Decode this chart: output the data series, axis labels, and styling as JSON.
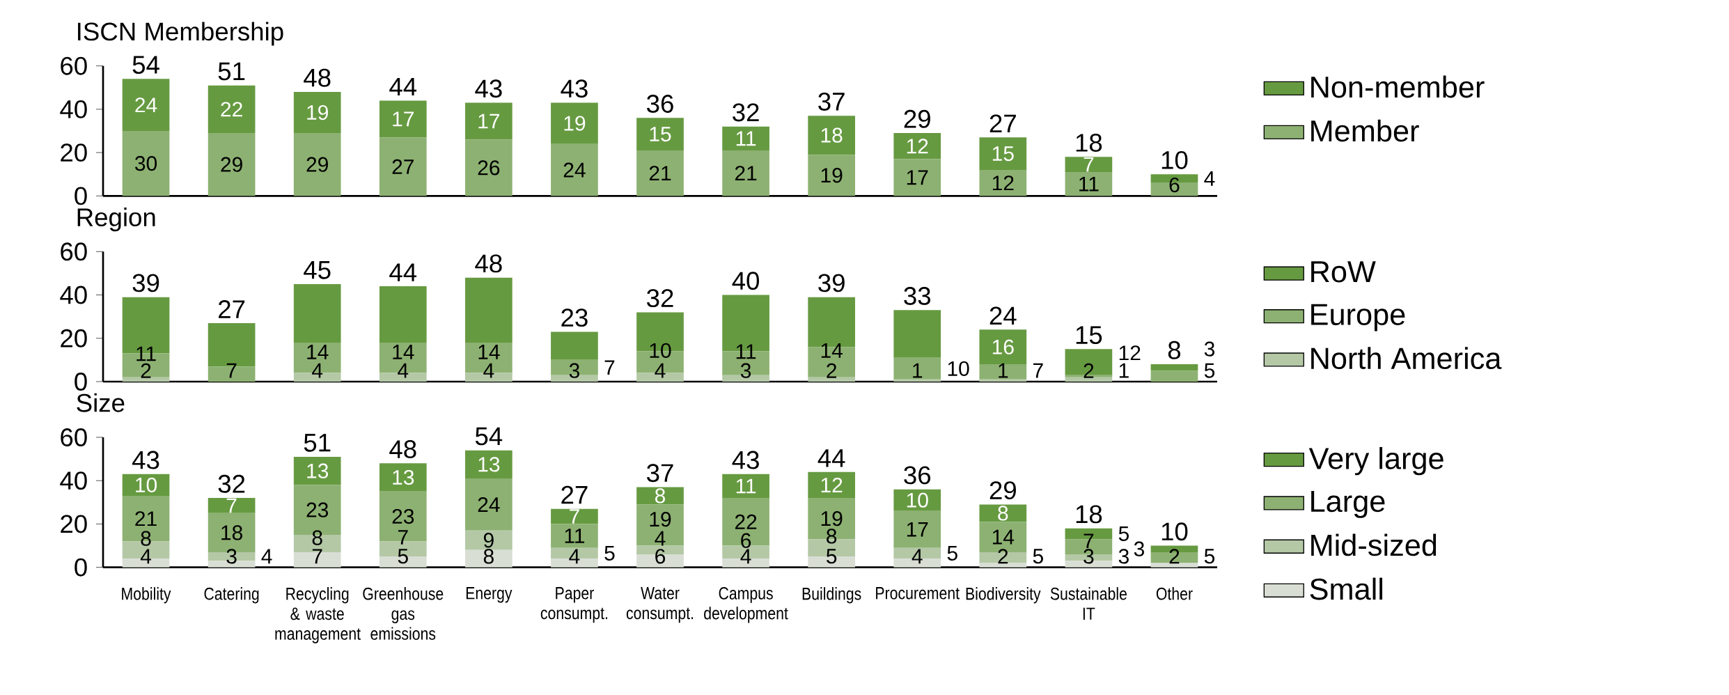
{
  "chart_data": [
    {
      "type": "bar",
      "stacked": true,
      "title": "ISCN Membership",
      "series": [
        {
          "name": "Member",
          "color": "#8db172",
          "values": [
            30,
            29,
            29,
            27,
            26,
            24,
            21,
            21,
            19,
            17,
            12,
            11,
            6
          ],
          "value_labels": [
            "30",
            "29",
            "29",
            "27",
            "26",
            "24",
            "21",
            "21",
            "19",
            "17",
            "12",
            "11",
            "6"
          ]
        },
        {
          "name": "Non-member",
          "color": "#669a41",
          "values": [
            24,
            22,
            19,
            17,
            17,
            19,
            15,
            11,
            18,
            12,
            15,
            7,
            4
          ],
          "value_labels": [
            "24",
            "22",
            "19",
            "17",
            "17",
            "19",
            "15",
            "11",
            "18",
            "12",
            "15",
            "7",
            "4"
          ]
        }
      ],
      "totals": [
        "54",
        "51",
        "48",
        "44",
        "43",
        "43",
        "36",
        "32",
        "37",
        "29",
        "27",
        "18",
        "10"
      ],
      "ylim": [
        0,
        60
      ],
      "yticks": [
        0,
        20,
        40,
        60
      ],
      "legend": "right",
      "tick_labels": "y"
    },
    {
      "type": "bar",
      "stacked": true,
      "title": "Region",
      "series": [
        {
          "name": "North America",
          "color": "#b4c8a6",
          "values": [
            2,
            0,
            4,
            4,
            4,
            3,
            4,
            3,
            2,
            1,
            1,
            2,
            0
          ],
          "value_labels": [
            "2",
            null,
            "4",
            "4",
            "4",
            "3",
            "4",
            "3",
            "2",
            "1",
            "1",
            "2",
            null
          ]
        },
        {
          "name": "Europe",
          "color": "#8db172",
          "values": [
            11,
            7,
            14,
            14,
            14,
            7,
            10,
            11,
            14,
            10,
            7,
            1,
            5
          ],
          "value_labels": [
            "11",
            "7",
            "14",
            "14",
            "14",
            "7",
            "10",
            "11",
            "14",
            "10",
            "7",
            "1",
            "5"
          ]
        },
        {
          "name": "RoW",
          "color": "#669a41",
          "values": [
            26,
            20,
            27,
            26,
            30,
            13,
            18,
            26,
            23,
            22,
            16,
            12,
            3
          ],
          "value_labels": [
            null,
            null,
            null,
            null,
            null,
            null,
            null,
            null,
            null,
            null,
            "16",
            "12",
            "3"
          ]
        }
      ],
      "totals": [
        "39",
        "27",
        "45",
        "44",
        "48",
        "23",
        "32",
        "40",
        "39",
        "33",
        "24",
        "15",
        "8"
      ],
      "ylim": [
        0,
        60
      ],
      "yticks": [
        0,
        20,
        40,
        60
      ],
      "legend": "right",
      "tick_labels": "y"
    },
    {
      "type": "bar",
      "stacked": true,
      "title": "Size",
      "categories": [
        "Mobility",
        "Catering",
        "Recycling & waste management",
        "Greenhouse gas emissions",
        "Energy",
        "Paper consumpt.",
        "Water consumpt.",
        "Campus development",
        "Buildings",
        "Procurement",
        "Biodiversity",
        "Sustainable IT",
        "Other"
      ],
      "series": [
        {
          "name": "Small",
          "color": "#d9ded5",
          "values": [
            4,
            3,
            7,
            5,
            8,
            4,
            6,
            4,
            5,
            4,
            2,
            3,
            2
          ],
          "value_labels": [
            "4",
            "3",
            "7",
            "5",
            "8",
            "4",
            "6",
            "4",
            "5",
            "4",
            "2",
            "3",
            "2"
          ]
        },
        {
          "name": "Mid-sized",
          "color": "#b4c8a6",
          "values": [
            8,
            4,
            8,
            7,
            9,
            5,
            4,
            6,
            8,
            5,
            5,
            3,
            0
          ],
          "value_labels": [
            "8",
            "4",
            "8",
            "7",
            "9",
            "5",
            "4",
            "6",
            "8",
            "5",
            "5",
            "3",
            null
          ]
        },
        {
          "name": "Large",
          "color": "#8db172",
          "values": [
            21,
            18,
            23,
            23,
            24,
            11,
            19,
            22,
            19,
            17,
            14,
            7,
            5
          ],
          "value_labels": [
            "21",
            "18",
            "23",
            "23",
            "24",
            "11",
            "19",
            "22",
            "19",
            "17",
            "14",
            "7",
            "5"
          ]
        },
        {
          "name": "Very large",
          "color": "#669a41",
          "values": [
            10,
            7,
            13,
            13,
            13,
            7,
            8,
            11,
            12,
            10,
            8,
            5,
            3
          ],
          "value_labels": [
            "10",
            "7",
            "13",
            "13",
            "13",
            "7",
            "8",
            "11",
            "12",
            "10",
            "8",
            "5",
            "3"
          ]
        }
      ],
      "totals": [
        "43",
        "32",
        "51",
        "48",
        "54",
        "27",
        "37",
        "43",
        "44",
        "36",
        "29",
        "18",
        "10"
      ],
      "ylim": [
        0,
        60
      ],
      "yticks": [
        0,
        20,
        40,
        60
      ],
      "legend": "right"
    }
  ]
}
